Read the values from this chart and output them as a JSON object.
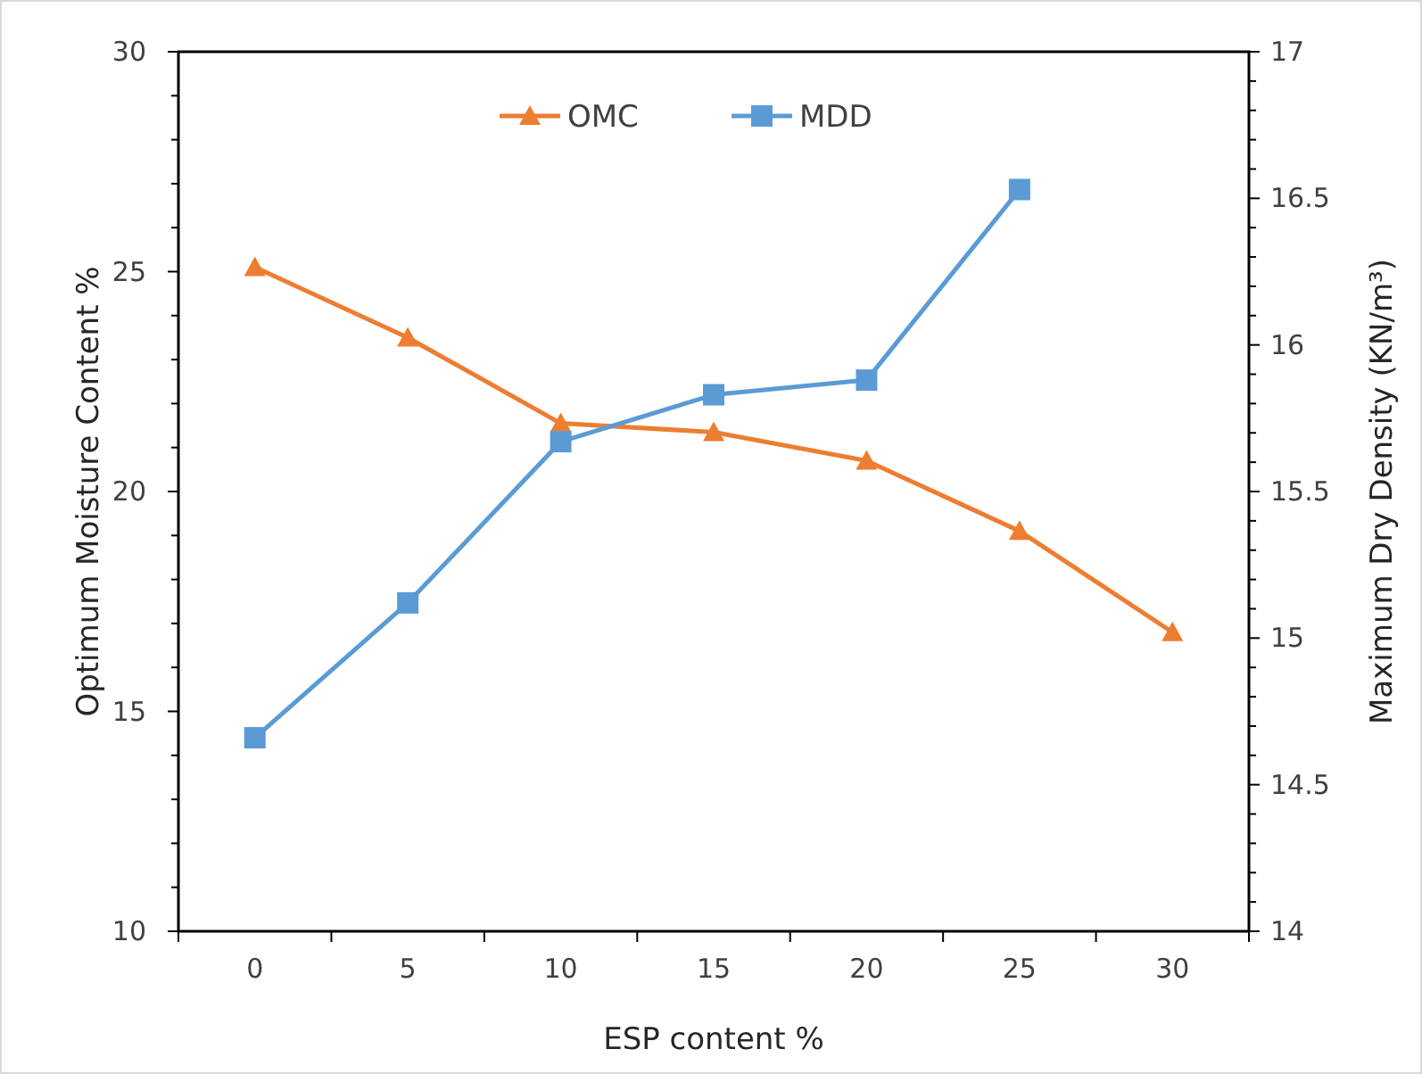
{
  "chart_data": {
    "type": "line",
    "xlabel": "ESP content %",
    "ylabel": "Optimum Moisture Content %",
    "y2label": "Maximum Dry Density (KN/m³)",
    "categories": [
      "0",
      "5",
      "10",
      "15",
      "20",
      "25",
      "30"
    ],
    "series": [
      {
        "name": "OMC",
        "color": "#ed7d31",
        "marker": "triangle",
        "values": [
          25.1,
          23.5,
          21.55,
          21.35,
          20.7,
          19.1,
          16.8
        ]
      },
      {
        "name": "MDD",
        "color": "#5b9bd5",
        "marker": "square",
        "axis": "y2",
        "values": [
          14.66,
          15.12,
          15.67,
          15.83,
          15.88,
          16.53,
          null
        ]
      }
    ],
    "ylim": [
      10,
      30
    ],
    "yticks": [
      10,
      {
        "value": 11,
        "label": null
      },
      {
        "value": 12,
        "label": null
      },
      {
        "value": 13,
        "label": null
      },
      {
        "value": 14,
        "label": null
      },
      15,
      {
        "value": 16,
        "label": null
      },
      {
        "value": 17,
        "label": null
      },
      {
        "value": 18,
        "label": null
      },
      {
        "value": 19,
        "label": null
      },
      20,
      {
        "value": 21,
        "label": null
      },
      {
        "value": 22,
        "label": null
      },
      {
        "value": 23,
        "label": null
      },
      {
        "value": 24,
        "label": null
      },
      25,
      {
        "value": 26,
        "label": null
      },
      {
        "value": 27,
        "label": null
      },
      {
        "value": 28,
        "label": null
      },
      {
        "value": 29,
        "label": null
      },
      30
    ],
    "y2lim": [
      14,
      17
    ],
    "y2ticks": [
      14,
      {
        "value": 14.1,
        "label": null
      },
      {
        "value": 14.2,
        "label": null
      },
      {
        "value": 14.3,
        "label": null
      },
      {
        "value": 14.4,
        "label": null
      },
      14.5,
      {
        "value": 14.6,
        "label": null
      },
      {
        "value": 14.7,
        "label": null
      },
      {
        "value": 14.8,
        "label": null
      },
      {
        "value": 14.9,
        "label": null
      },
      15,
      {
        "value": 15.1,
        "label": null
      },
      {
        "value": 15.2,
        "label": null
      },
      {
        "value": 15.3,
        "label": null
      },
      {
        "value": 15.4,
        "label": null
      },
      15.5,
      {
        "value": 15.6,
        "label": null
      },
      {
        "value": 15.7,
        "label": null
      },
      {
        "value": 15.8,
        "label": null
      },
      {
        "value": 15.9,
        "label": null
      },
      16,
      {
        "value": 16.1,
        "label": null
      },
      {
        "value": 16.2,
        "label": null
      },
      {
        "value": 16.3,
        "label": null
      },
      {
        "value": 16.4,
        "label": null
      },
      16.5,
      {
        "value": 16.6,
        "label": null
      },
      {
        "value": 16.7,
        "label": null
      },
      {
        "value": 16.8,
        "label": null
      },
      {
        "value": 16.9,
        "label": null
      },
      17
    ],
    "legend": "top",
    "grid": false,
    "line_style": "solid"
  }
}
